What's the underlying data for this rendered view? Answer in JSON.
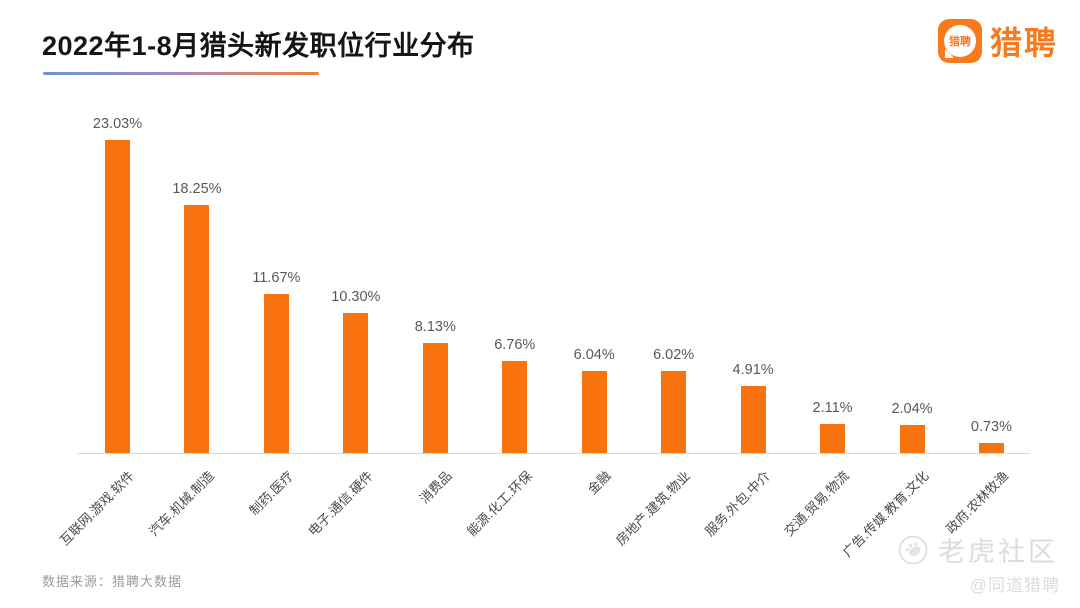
{
  "header": {
    "title": "2022年1-8月猎头新发职位行业分布",
    "logo": {
      "bubble_text": "猎聘",
      "wordmark": "猎聘"
    }
  },
  "chart_data": {
    "type": "bar",
    "title": "2022年1-8月猎头新发职位行业分布",
    "categories": [
      "互联网.游戏.软件",
      "汽车.机械.制造",
      "制药.医疗",
      "电子.通信.硬件",
      "消费品",
      "能源.化工.环保",
      "金融",
      "房地产.建筑.物业",
      "服务.外包.中介",
      "交通.贸易.物流",
      "广告.传媒.教育.文化",
      "政府.农林牧渔"
    ],
    "values": [
      23.03,
      18.25,
      11.67,
      10.3,
      8.13,
      6.76,
      6.04,
      6.02,
      4.91,
      2.11,
      2.04,
      0.73
    ],
    "value_labels": [
      "23.03%",
      "18.25%",
      "11.67%",
      "10.30%",
      "8.13%",
      "6.76%",
      "6.04%",
      "6.02%",
      "4.91%",
      "2.11%",
      "2.04%",
      "0.73%"
    ],
    "xlabel": "",
    "ylabel": "",
    "ylim": [
      0,
      25
    ],
    "grid": false,
    "legend": false,
    "bar_color": "#F8720E",
    "axis_line_color": "#d9d9d9"
  },
  "footer": {
    "source": "数据来源：猎聘大数据"
  },
  "watermark": {
    "community": "老虎社区",
    "handle": "@同道猎聘"
  },
  "colors": {
    "accent_orange": "#F87A1F",
    "underline_gradient_start": "#6C95D8",
    "underline_gradient_end": "#EE7E3E",
    "value_label": "#595959",
    "category_label": "#4a4a4a",
    "watermark_gray": "#dcdcdc"
  }
}
